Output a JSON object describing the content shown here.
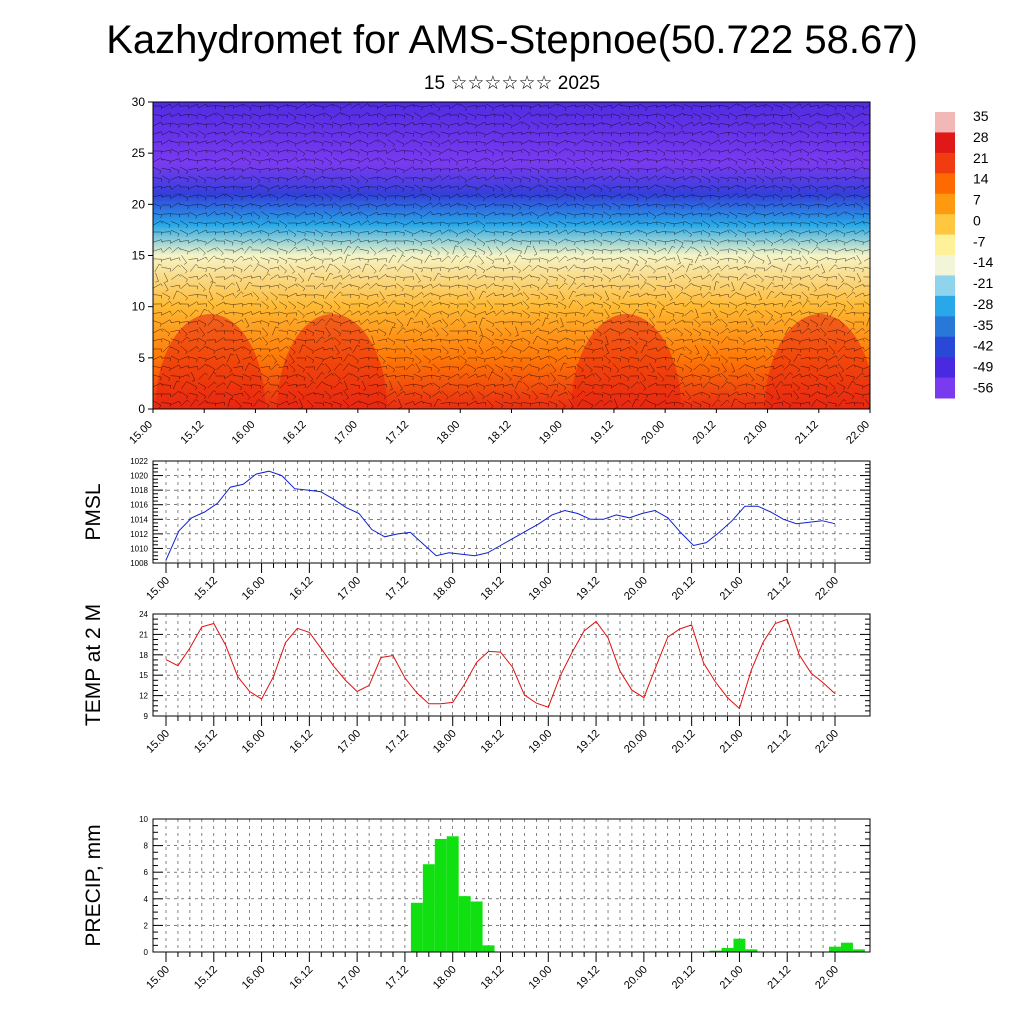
{
  "title": "Kazhydromet for AMS-Stepnoe(50.722 58.67)",
  "subtitle": "15 ☆☆☆☆☆☆ 2025",
  "time_labels": [
    "15.00",
    "15.12",
    "16.00",
    "16.12",
    "17.00",
    "17.12",
    "18.00",
    "18.12",
    "19.00",
    "19.12",
    "20.00",
    "20.12",
    "21.00",
    "21.12",
    "22.00"
  ],
  "chart_data": [
    {
      "type": "heatmap",
      "name": "cross-section",
      "ylabel": "",
      "ylim": [
        0,
        30
      ],
      "y_ticks": [
        0,
        5,
        10,
        15,
        20,
        25,
        30
      ],
      "colorbar_labels": [
        "35",
        "28",
        "21",
        "14",
        "7",
        "0",
        "-7",
        "-14",
        "-21",
        "-28",
        "-35",
        "-42",
        "-49",
        "-56"
      ],
      "colorbar_colors": [
        "#f2b8b8",
        "#e01818",
        "#f03c10",
        "#ff6a00",
        "#ff9a10",
        "#ffc640",
        "#fff09a",
        "#f2f5d8",
        "#8fd4ec",
        "#28a8e8",
        "#2878d8",
        "#2a48d8",
        "#4a2ae0",
        "#7a3af0"
      ],
      "temperature_by_height": [
        {
          "h": 0,
          "t": 24
        },
        {
          "h": 5,
          "t": 12
        },
        {
          "h": 10,
          "t": 2
        },
        {
          "h": 15,
          "t": -12
        },
        {
          "h": 18,
          "t": -28
        },
        {
          "h": 21,
          "t": -44
        },
        {
          "h": 24,
          "t": -56
        },
        {
          "h": 27,
          "t": -53
        },
        {
          "h": 30,
          "t": -50
        }
      ],
      "wind_barbs": true
    },
    {
      "type": "line",
      "name": "pmsl",
      "ylabel": "PMSL",
      "ylim": [
        1008,
        1022
      ],
      "y_ticks": [
        1008,
        1010,
        1012,
        1014,
        1016,
        1018,
        1020,
        1022
      ],
      "color": "#1020d0",
      "grid": true,
      "values": [
        1008.4,
        1012.4,
        1014.2,
        1015.0,
        1016.2,
        1018.4,
        1018.8,
        1020.2,
        1020.6,
        1020.0,
        1018.2,
        1018.0,
        1017.8,
        1016.8,
        1015.6,
        1014.8,
        1012.6,
        1011.6,
        1012.0,
        1012.2,
        1010.6,
        1009.0,
        1009.4,
        1009.2,
        1009.0,
        1009.4,
        1010.4,
        1011.4,
        1012.4,
        1013.4,
        1014.6,
        1015.2,
        1014.8,
        1014.0,
        1014.0,
        1014.6,
        1014.2,
        1014.8,
        1015.2,
        1014.2,
        1012.2,
        1010.4,
        1010.8,
        1012.2,
        1013.8,
        1015.8,
        1015.8,
        1015.0,
        1014.0,
        1013.4,
        1013.6,
        1013.8,
        1013.4
      ]
    },
    {
      "type": "line",
      "name": "temp2m",
      "ylabel": "TEMP at 2 M",
      "ylim": [
        9,
        24
      ],
      "y_ticks": [
        9,
        12,
        15,
        18,
        21,
        24
      ],
      "color": "#e01010",
      "grid": true,
      "values": [
        17.3,
        16.4,
        19.0,
        22.1,
        22.6,
        19.4,
        14.8,
        12.6,
        11.5,
        14.8,
        19.8,
        21.9,
        21.3,
        18.9,
        16.4,
        14.3,
        12.6,
        13.5,
        17.6,
        17.9,
        14.6,
        12.4,
        10.8,
        10.8,
        11.0,
        13.7,
        16.9,
        18.5,
        18.4,
        16.2,
        12.1,
        10.9,
        10.3,
        14.9,
        18.4,
        21.5,
        22.9,
        20.5,
        15.6,
        12.8,
        11.7,
        16.2,
        20.6,
        21.8,
        22.4,
        16.8,
        14.0,
        11.7,
        10.1,
        15.8,
        19.9,
        22.6,
        23.2,
        18.0,
        15.3,
        13.9,
        12.3
      ]
    },
    {
      "type": "bar",
      "name": "precip",
      "ylabel": "PRECIP, mm",
      "ylim": [
        0,
        10
      ],
      "y_ticks": [
        0,
        2,
        4,
        6,
        8,
        10
      ],
      "color": "#10e010",
      "grid": true,
      "start": "15.00",
      "step_hours": 3,
      "values": [
        0,
        0,
        0,
        0,
        0,
        0,
        0,
        0,
        0,
        0,
        0,
        0,
        0,
        0,
        0,
        0,
        0,
        0,
        0,
        0,
        0,
        3.7,
        6.6,
        8.5,
        8.7,
        4.2,
        3.8,
        0.5,
        0,
        0,
        0,
        0,
        0,
        0,
        0,
        0,
        0,
        0,
        0,
        0,
        0,
        0,
        0,
        0,
        0,
        0,
        0.1,
        0.3,
        1.0,
        0.2,
        0,
        0,
        0,
        0,
        0,
        0,
        0.4,
        0.7,
        0.2
      ]
    }
  ]
}
